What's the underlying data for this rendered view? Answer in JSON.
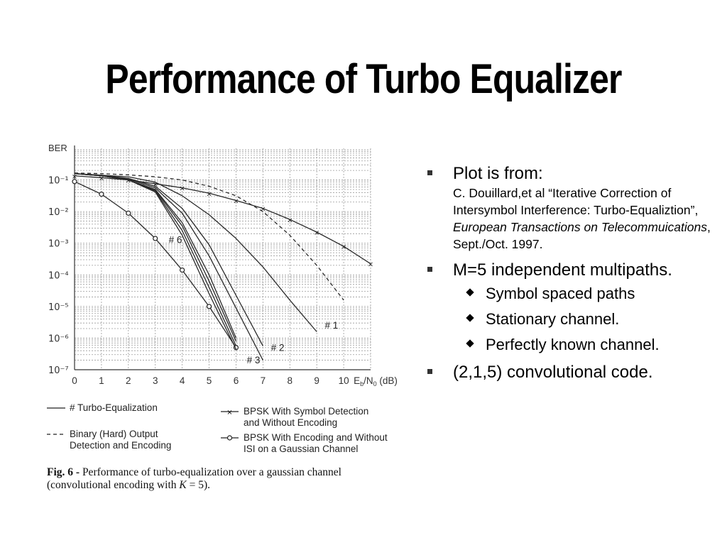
{
  "slide": {
    "title": "Performance of Turbo Equalizer"
  },
  "chart_data": {
    "type": "line",
    "ylabel": "BER",
    "xlabel_main": "E",
    "xlabel_sub1": "b",
    "xlabel_mid": "/N",
    "xlabel_sub2": "0",
    "xlabel_unit": " (dB)",
    "x_ticks": [
      0,
      1,
      2,
      3,
      4,
      5,
      6,
      7,
      8,
      9,
      10
    ],
    "x_tick_labels": [
      "0",
      "1",
      "2",
      "3",
      "4",
      "5",
      "6",
      "7",
      "8",
      "9",
      "10"
    ],
    "y_ticks": [
      -1,
      -2,
      -3,
      -4,
      -5,
      -6,
      -7
    ],
    "y_tick_labels": [
      "10⁻¹",
      "10⁻²",
      "10⁻³",
      "10⁻⁴",
      "10⁻⁵",
      "10⁻⁶",
      "10⁻⁷"
    ],
    "xlim": [
      0,
      11
    ],
    "ylim_log10": [
      -7,
      0
    ],
    "y_scale": "log",
    "grid": true,
    "annotations": [
      {
        "text": "# 6",
        "x": 3.5,
        "y_log10": -3
      },
      {
        "text": "# 1",
        "x": 9.3,
        "y_log10": -5.7
      },
      {
        "text": "# 2",
        "x": 7.3,
        "y_log10": -6.4
      },
      {
        "text": "# 3",
        "x": 6.4,
        "y_log10": -6.8
      }
    ],
    "series": [
      {
        "style": "solid-x",
        "x": [
          0,
          1,
          2,
          3,
          4,
          5,
          6,
          7,
          8,
          9,
          10,
          11
        ],
        "y_log10": [
          -0.87,
          -0.93,
          -1.0,
          -1.12,
          -1.25,
          -1.42,
          -1.65,
          -1.9,
          -2.25,
          -2.65,
          -3.1,
          -3.65
        ]
      },
      {
        "style": "dashed",
        "x": [
          0,
          1,
          2,
          3,
          4,
          5,
          6,
          7,
          8,
          9,
          10
        ],
        "y_log10": [
          -0.78,
          -0.8,
          -0.84,
          -0.9,
          -1.0,
          -1.2,
          -1.5,
          -2.0,
          -2.75,
          -3.7,
          -4.8
        ]
      },
      {
        "style": "solid-o",
        "x": [
          0,
          1,
          2,
          3,
          4,
          5,
          6
        ],
        "y_log10": [
          -1.05,
          -1.45,
          -2.05,
          -2.85,
          -3.85,
          -5.0,
          -6.3
        ]
      },
      {
        "style": "solid",
        "x": [
          0,
          1,
          2,
          3,
          4,
          5,
          6,
          7,
          8,
          9
        ],
        "y_log10": [
          -0.8,
          -0.85,
          -0.9,
          -1.07,
          -1.5,
          -2.1,
          -2.85,
          -3.75,
          -4.8,
          -5.8
        ]
      },
      {
        "style": "solid",
        "x": [
          0,
          1,
          2,
          3,
          4,
          5,
          6,
          7
        ],
        "y_log10": [
          -0.8,
          -0.85,
          -0.95,
          -1.2,
          -1.9,
          -3.05,
          -4.65,
          -6.25
        ]
      },
      {
        "style": "solid",
        "x": [
          0,
          1,
          2,
          3,
          4,
          5,
          6,
          7
        ],
        "y_log10": [
          -0.8,
          -0.85,
          -0.97,
          -1.25,
          -2.05,
          -3.4,
          -5.05,
          -6.7
        ]
      },
      {
        "style": "solid",
        "x": [
          0,
          1,
          2,
          3,
          4,
          5,
          6
        ],
        "y_log10": [
          -0.8,
          -0.87,
          -1.0,
          -1.3,
          -2.35,
          -4.0,
          -6.0
        ]
      },
      {
        "style": "solid",
        "x": [
          0,
          1,
          2,
          3,
          4,
          5,
          6
        ],
        "y_log10": [
          -0.8,
          -0.87,
          -1.0,
          -1.32,
          -2.45,
          -4.2,
          -6.1
        ]
      },
      {
        "style": "solid",
        "x": [
          0,
          1,
          2,
          3,
          4,
          5,
          6
        ],
        "y_log10": [
          -0.8,
          -0.87,
          -1.0,
          -1.35,
          -2.6,
          -4.4,
          -6.25
        ]
      },
      {
        "style": "solid",
        "x": [
          0,
          1,
          2,
          3,
          4,
          5,
          6
        ],
        "y_log10": [
          -0.8,
          -0.87,
          -1.0,
          -1.38,
          -2.75,
          -4.6,
          -6.35
        ]
      }
    ],
    "legend": [
      {
        "symbol": "solid",
        "label": "# Turbo-Equalization"
      },
      {
        "symbol": "dashed",
        "label_line1": "Binary (Hard) Output",
        "label_line2": "Detection and Encoding"
      },
      {
        "symbol": "solid-x",
        "label_line1": "BPSK With Symbol Detection",
        "label_line2": "and Without Encoding"
      },
      {
        "symbol": "solid-o",
        "label_line1": "BPSK With Encoding and Without",
        "label_line2": "ISI on a Gaussian Channel"
      }
    ],
    "caption": {
      "fig": "Fig. 6 -",
      "text1": " Performance of turbo-equalization over a gaussian channel",
      "text2": "(convolutional encoding with ",
      "k": "K",
      "text3": " = 5)."
    }
  },
  "bullets": {
    "b1_title": "Plot is from:",
    "b1_ref_a": "C. Douillard,et al “Iterative Correction of Intersymbol Interference: Turbo-Equaliztion”, ",
    "b1_ref_journal": "European Transactions on Telecommuications",
    "b1_ref_b": ", Sept./Oct. 1997.",
    "b2_title": "M=5 independent multipaths.",
    "b2_sub": [
      "Symbol spaced paths",
      "Stationary channel.",
      "Perfectly known channel."
    ],
    "b3_title": "(2,1,5) convolutional code."
  }
}
